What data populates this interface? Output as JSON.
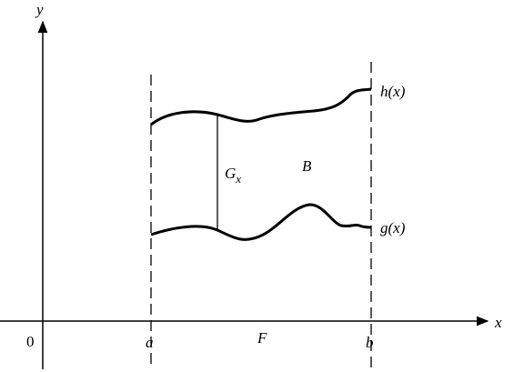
{
  "axes": {
    "y_label": "y",
    "x_label": "x",
    "origin": "0"
  },
  "points": {
    "a": "a",
    "b": "b"
  },
  "regions": {
    "base": "F",
    "set": "B"
  },
  "curves": {
    "upper": "h(x)",
    "lower": "g(x)"
  },
  "section": {
    "main": "G",
    "sub": "x"
  }
}
